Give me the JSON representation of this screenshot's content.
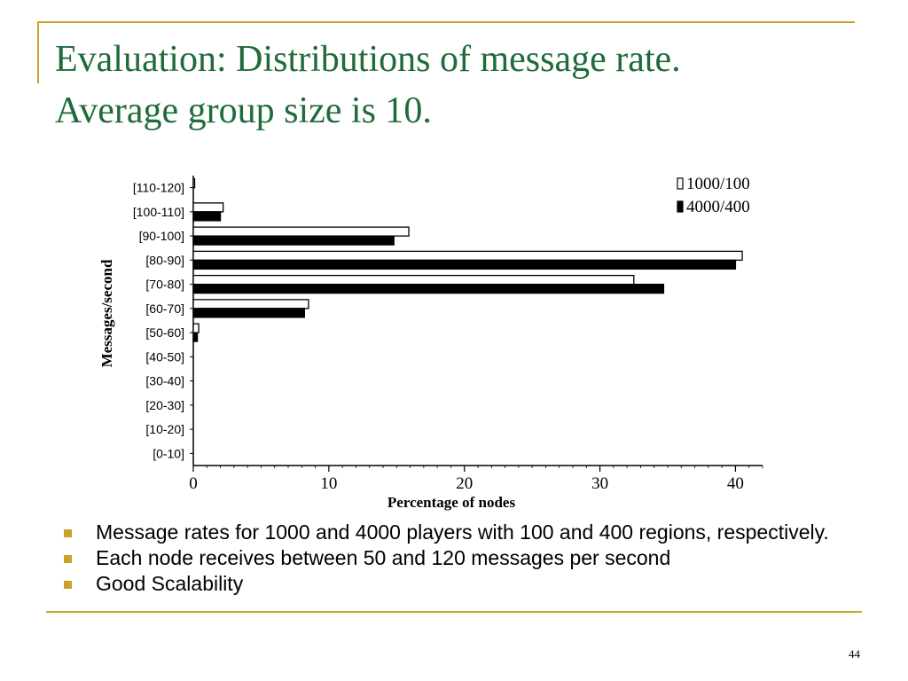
{
  "slide": {
    "title_line1": "Evaluation: Distributions of message rate.",
    "title_line2": "Average group size is 10.",
    "bullets": [
      "Message rates for 1000 and 4000 players with 100 and 400 regions, respectively.",
      "Each node receives between 50 and 120 messages per second",
      "Good Scalability"
    ],
    "page_number": "44"
  },
  "colors": {
    "title": "#1f6b3a",
    "accent": "#c9a227",
    "series_1000": "#ffffff",
    "series_4000": "#000000"
  },
  "chart_data": {
    "type": "bar",
    "orientation": "horizontal",
    "categories": [
      "[110-120]",
      "[100-110]",
      "[90-100]",
      "[80-90]",
      "[70-80]",
      "[60-70]",
      "[50-60]",
      "[40-50]",
      "[30-40]",
      "[20-30]",
      "[10-20]",
      "[0-10]"
    ],
    "series": [
      {
        "name": "1000/100",
        "values": [
          0.1,
          2.2,
          15.9,
          40.5,
          32.5,
          8.5,
          0.4,
          0,
          0,
          0,
          0,
          0
        ]
      },
      {
        "name": "4000/400",
        "values": [
          0,
          2.0,
          14.8,
          40.0,
          34.7,
          8.2,
          0.3,
          0,
          0,
          0,
          0,
          0
        ]
      }
    ],
    "xlabel": "Percentage of nodes",
    "ylabel": "Messages/second",
    "xlim": [
      0,
      42
    ],
    "xticks": [
      "0",
      "10",
      "20",
      "30",
      "40"
    ],
    "legend_position": "top-right",
    "grid": false
  }
}
